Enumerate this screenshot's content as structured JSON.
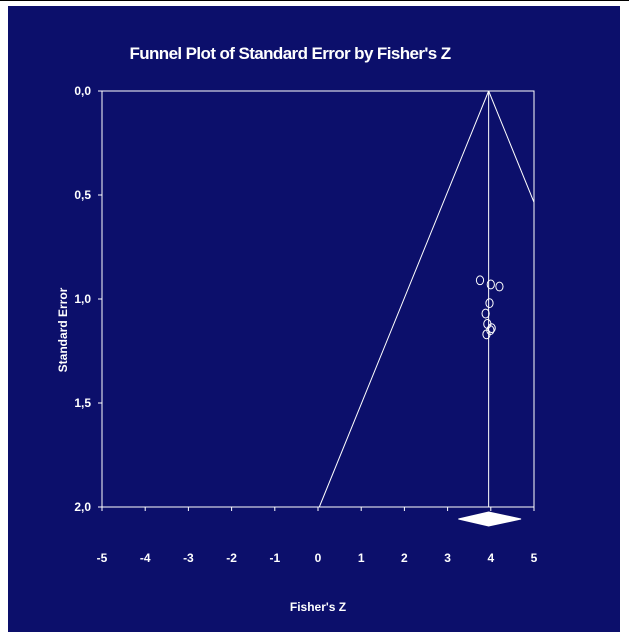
{
  "chart_data": {
    "type": "scatter",
    "title": "Funnel Plot of Standard Error by Fisher's Z",
    "xlabel": "Fisher's Z",
    "ylabel": "Standard Error",
    "xlim": [
      -5,
      5
    ],
    "ylim": [
      0,
      2
    ],
    "y_inverted": true,
    "x_ticks": [
      -5,
      -4,
      -3,
      -2,
      -1,
      0,
      1,
      2,
      3,
      4,
      5
    ],
    "x_tick_labels": [
      "-5",
      "-4",
      "-3",
      "-2",
      "-1",
      "0",
      "1",
      "2",
      "3",
      "4",
      "5"
    ],
    "y_ticks": [
      0,
      0.5,
      1,
      1.5,
      2
    ],
    "y_tick_labels": [
      "0,0",
      "0,5",
      "1,0",
      "1,5",
      "2,0"
    ],
    "grid": false,
    "summary_effect": 3.95,
    "summary_ci": [
      3.25,
      4.7
    ],
    "funnel_apex": [
      3.95,
      0
    ],
    "funnel_left_base": [
      0.03,
      2
    ],
    "funnel_right_point": [
      5,
      0.535
    ],
    "points": [
      {
        "x": 3.75,
        "y": 0.91
      },
      {
        "x": 4.0,
        "y": 0.93
      },
      {
        "x": 4.2,
        "y": 0.94
      },
      {
        "x": 3.97,
        "y": 1.02
      },
      {
        "x": 3.88,
        "y": 1.07
      },
      {
        "x": 3.92,
        "y": 1.12
      },
      {
        "x": 4.02,
        "y": 1.14
      },
      {
        "x": 3.99,
        "y": 1.15
      },
      {
        "x": 3.9,
        "y": 1.17
      }
    ],
    "colors": {
      "background": "#0c0f6b",
      "foreground": "#ffffff",
      "page": "#ffffff"
    }
  }
}
